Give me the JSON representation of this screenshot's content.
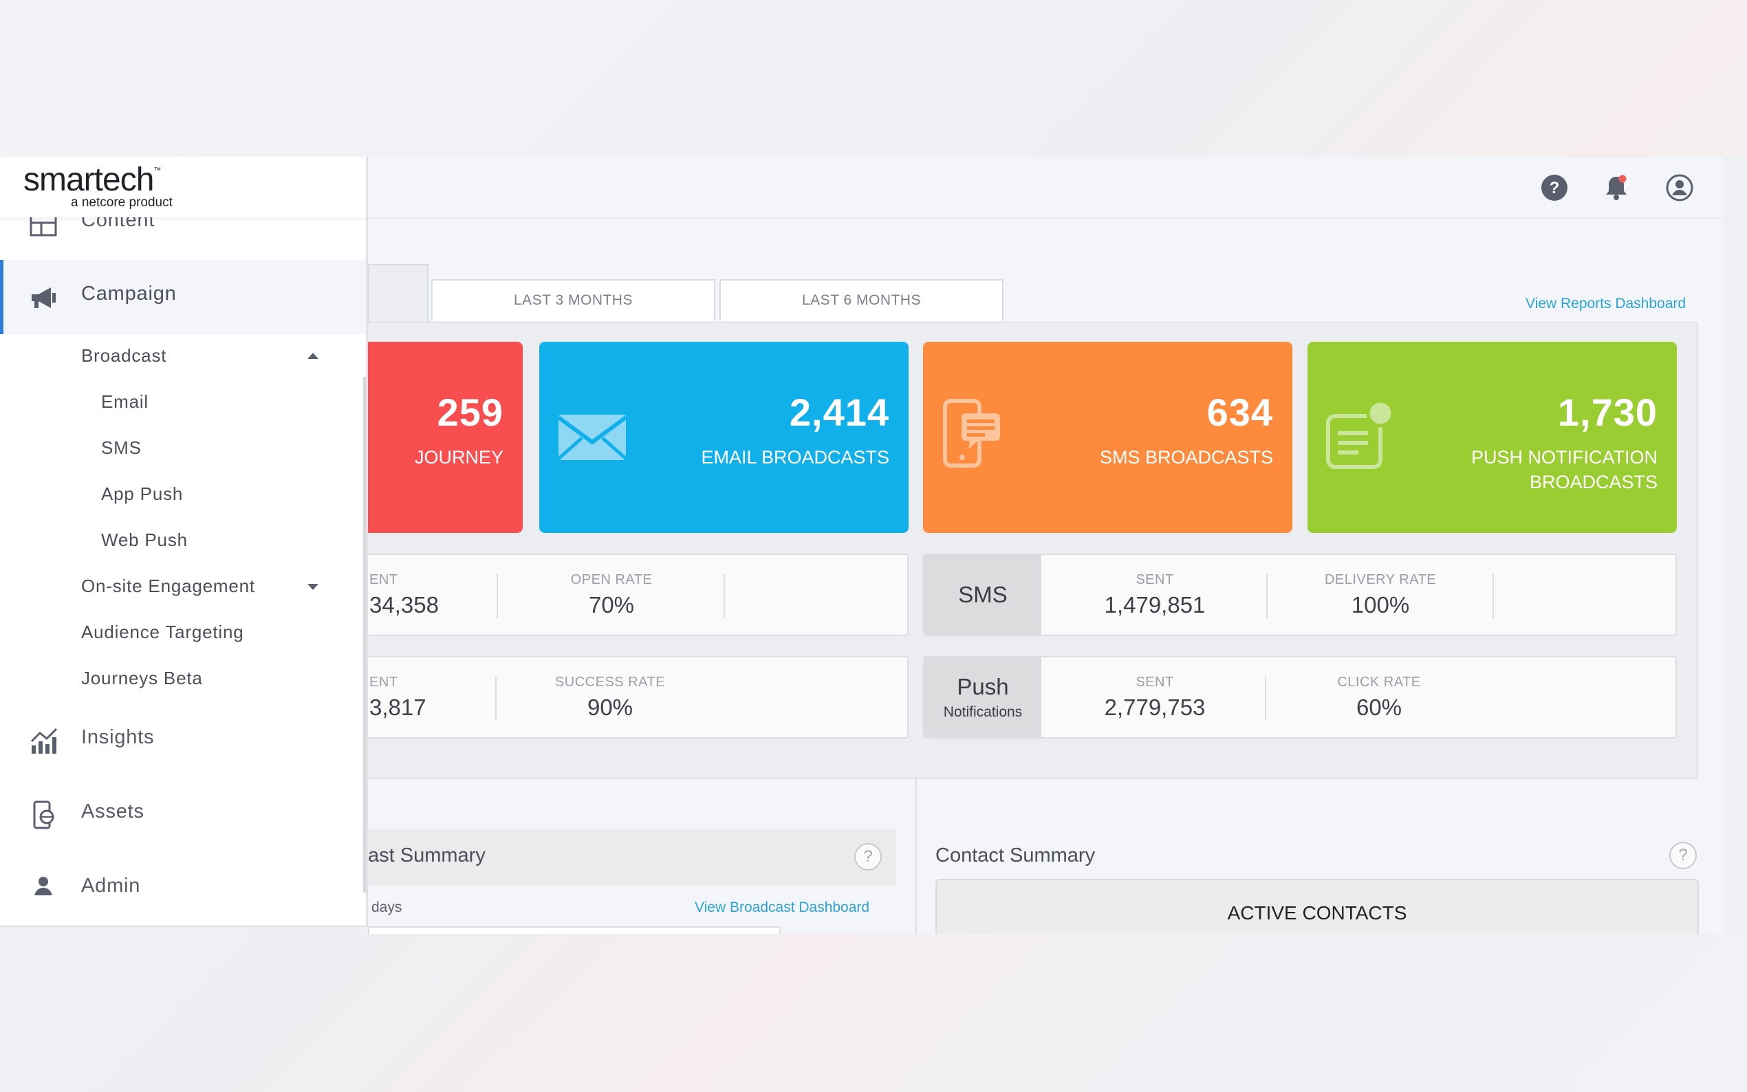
{
  "brand": {
    "logo_text": "smartech",
    "tagline": "a netcore product"
  },
  "header_icons": [
    "help-icon",
    "notification-bell-icon",
    "user-profile-icon"
  ],
  "sidebar": {
    "items": [
      {
        "label": "Content",
        "icon": "content-layout-icon"
      },
      {
        "label": "Campaign",
        "icon": "megaphone-icon",
        "active": true
      },
      {
        "label": "Insights",
        "icon": "chart-trend-icon"
      },
      {
        "label": "Assets",
        "icon": "device-globe-icon"
      },
      {
        "label": "Admin",
        "icon": "user-icon"
      }
    ],
    "campaign_children": {
      "broadcast": "Broadcast",
      "email": "Email",
      "sms": "SMS",
      "app_push": "App Push",
      "web_push": "Web Push",
      "onsite": "On-site Engagement",
      "audience": "Audience Targeting",
      "journeys": "Journeys Beta"
    }
  },
  "tabs": {
    "last3": "LAST 3 MONTHS",
    "last6": "LAST 6 MONTHS"
  },
  "reports_link": "View Reports Dashboard",
  "cards": {
    "journey": {
      "value": "259",
      "label": "JOURNEY",
      "color": "#f94e4f"
    },
    "email": {
      "value": "2,414",
      "label": "EMAIL BROADCASTS",
      "color": "#12b0ea"
    },
    "sms": {
      "value": "634",
      "label": "SMS BROADCASTS",
      "color": "#fe8b3d"
    },
    "push": {
      "value": "1,730",
      "label_line1": "PUSH NOTIFICATION",
      "label_line2": "BROADCASTS",
      "color": "#9acd32"
    }
  },
  "stats": {
    "email": {
      "sent_cap": "ENT",
      "sent_val": "34,358",
      "open_cap": "OPEN RATE",
      "open_val": "70%"
    },
    "journey": {
      "sent_cap": "ENT",
      "sent_val": "3,817",
      "success_cap": "SUCCESS RATE",
      "success_val": "90%"
    },
    "sms": {
      "tag": "SMS",
      "sent_cap": "SENT",
      "sent_val": "1,479,851",
      "delivery_cap": "DELIVERY RATE",
      "delivery_val": "100%"
    },
    "push": {
      "tag": "Push",
      "tag_sub": "Notifications",
      "sent_cap": "SENT",
      "sent_val": "2,779,753",
      "click_cap": "CLICK RATE",
      "click_val": "60%"
    }
  },
  "broadcast_summary": {
    "title": "ast Summary",
    "days": "days",
    "link": "View Broadcast Dashboard",
    "help": "?"
  },
  "contact_summary": {
    "title": "Contact Summary",
    "active": "ACTIVE CONTACTS",
    "help": "?"
  }
}
